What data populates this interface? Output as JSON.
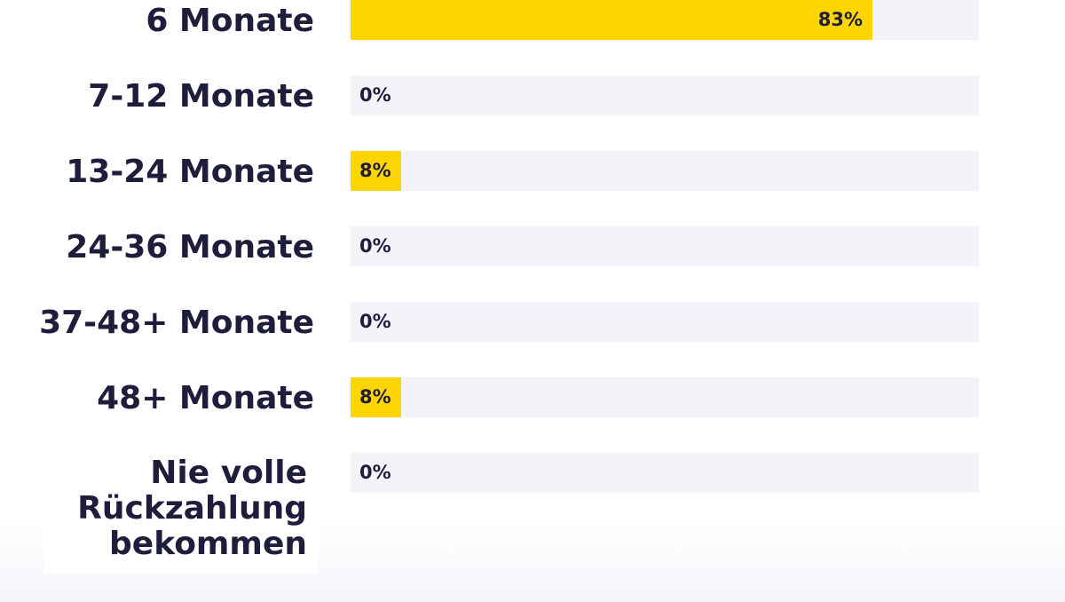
{
  "chart_data": {
    "type": "bar",
    "orientation": "horizontal",
    "categories": [
      "6 Monate",
      "7-12 Monate",
      "13-24 Monate",
      "24-36 Monate",
      "37-48+ Monate",
      "48+ Monate",
      "Nie volle Rückzahlung bekommen"
    ],
    "values": [
      83,
      0,
      8,
      0,
      0,
      8,
      0
    ],
    "value_labels": [
      "83%",
      "0%",
      "8%",
      "0%",
      "0%",
      "8%",
      "0%"
    ],
    "xlim": [
      0,
      100
    ],
    "bar_color": "#ffd500",
    "track_color": "#f4f3f9",
    "text_color": "#1e1e3c"
  }
}
